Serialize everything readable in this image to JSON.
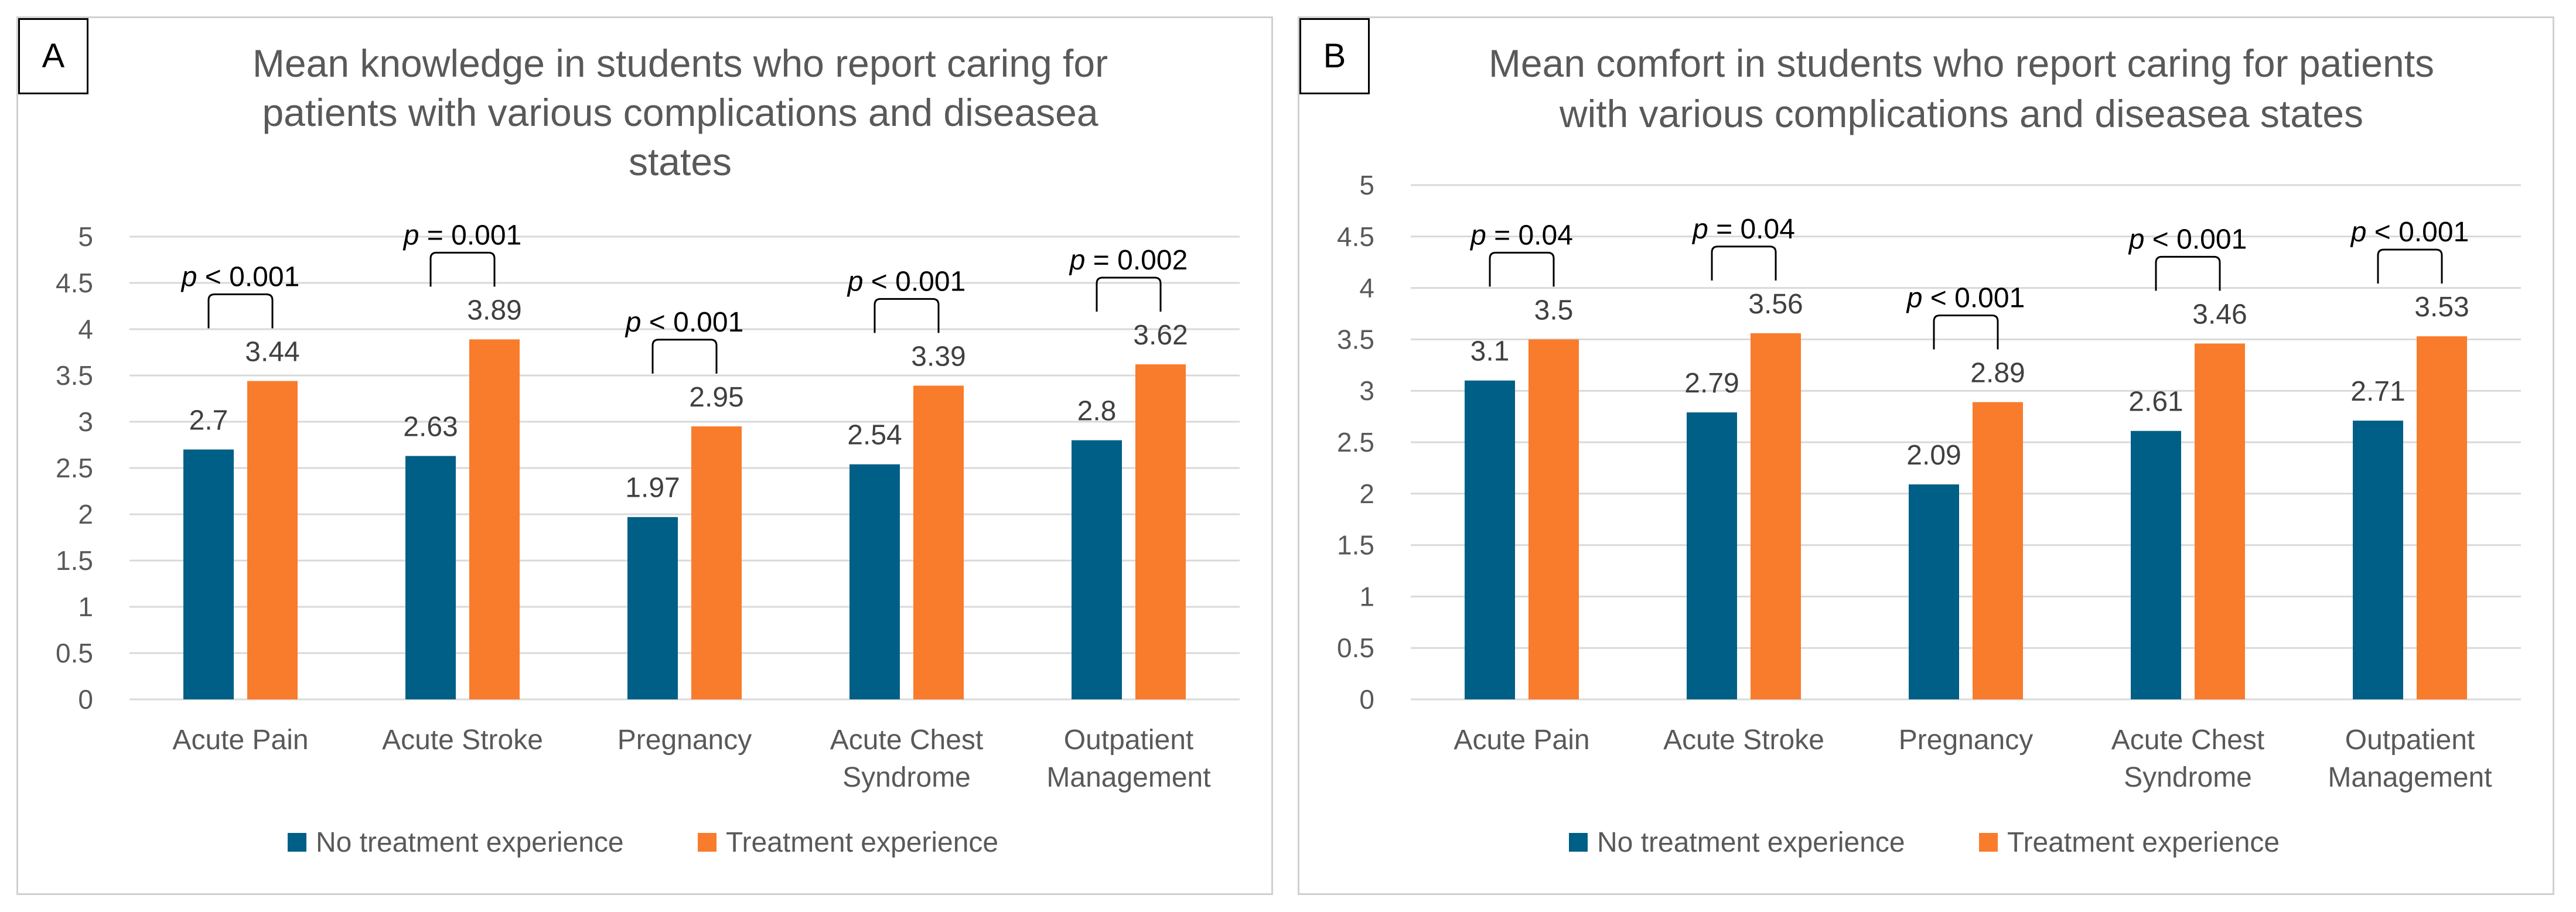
{
  "colors": {
    "no_treatment": "#005f86",
    "treatment": "#f97b2c",
    "grid": "#d9d9d9"
  },
  "chart_data": [
    {
      "panel": "A",
      "type": "bar",
      "title": "Mean knowledge in students who report caring for patients with various complications and diseasea states",
      "title_lines": [
        "Mean knowledge in students who report caring for",
        "patients with various complications and diseasea",
        "states"
      ],
      "categories": [
        "Acute Pain",
        "Acute Stroke",
        "Pregnancy",
        "Acute Chest Syndrome",
        "Outpatient Management"
      ],
      "category_lines": [
        [
          "Acute Pain"
        ],
        [
          "Acute Stroke"
        ],
        [
          "Pregnancy"
        ],
        [
          "Acute Chest",
          "Syndrome"
        ],
        [
          "Outpatient",
          "Management"
        ]
      ],
      "series": [
        {
          "name": "No treatment experience",
          "values": [
            2.7,
            2.63,
            1.97,
            2.54,
            2.8
          ],
          "labels": [
            "2.7",
            "2.63",
            "1.97",
            "2.54",
            "2.8"
          ]
        },
        {
          "name": "Treatment experience",
          "values": [
            3.44,
            3.89,
            2.95,
            3.39,
            3.62
          ],
          "labels": [
            "3.44",
            "3.89",
            "2.95",
            "3.39",
            "3.62"
          ]
        }
      ],
      "p_values": [
        "< 0.001",
        "= 0.001",
        "< 0.001",
        "< 0.001",
        "= 0.002"
      ],
      "p_symbol": "p",
      "ylim": [
        0,
        5
      ],
      "yticks": [
        "0",
        "0.5",
        "1",
        "1.5",
        "2",
        "2.5",
        "3",
        "3.5",
        "4",
        "4.5",
        "5"
      ],
      "grid": true,
      "legend": "bottom"
    },
    {
      "panel": "B",
      "type": "bar",
      "title": "Mean comfort in students who report caring for patients with various complications and diseasea states",
      "title_lines": [
        "Mean comfort in students who report caring for patients",
        "with various complications and diseasea states"
      ],
      "categories": [
        "Acute Pain",
        "Acute Stroke",
        "Pregnancy",
        "Acute Chest Syndrome",
        "Outpatient Management"
      ],
      "category_lines": [
        [
          "Acute Pain"
        ],
        [
          "Acute Stroke"
        ],
        [
          "Pregnancy"
        ],
        [
          "Acute Chest",
          "Syndrome"
        ],
        [
          "Outpatient",
          "Management"
        ]
      ],
      "series": [
        {
          "name": "No treatment experience",
          "values": [
            3.1,
            2.79,
            2.09,
            2.61,
            2.71
          ],
          "labels": [
            "3.1",
            "2.79",
            "2.09",
            "2.61",
            "2.71"
          ]
        },
        {
          "name": "Treatment experience",
          "values": [
            3.5,
            3.56,
            2.89,
            3.46,
            3.53
          ],
          "labels": [
            "3.5",
            "3.56",
            "2.89",
            "3.46",
            "3.53"
          ]
        }
      ],
      "p_values": [
        "= 0.04",
        "= 0.04",
        "< 0.001",
        "< 0.001",
        "< 0.001"
      ],
      "p_symbol": "p",
      "ylim": [
        0,
        5
      ],
      "yticks": [
        "0",
        "0.5",
        "1",
        "1.5",
        "2",
        "2.5",
        "3",
        "3.5",
        "4",
        "4.5",
        "5"
      ],
      "grid": true,
      "legend": "bottom"
    }
  ]
}
